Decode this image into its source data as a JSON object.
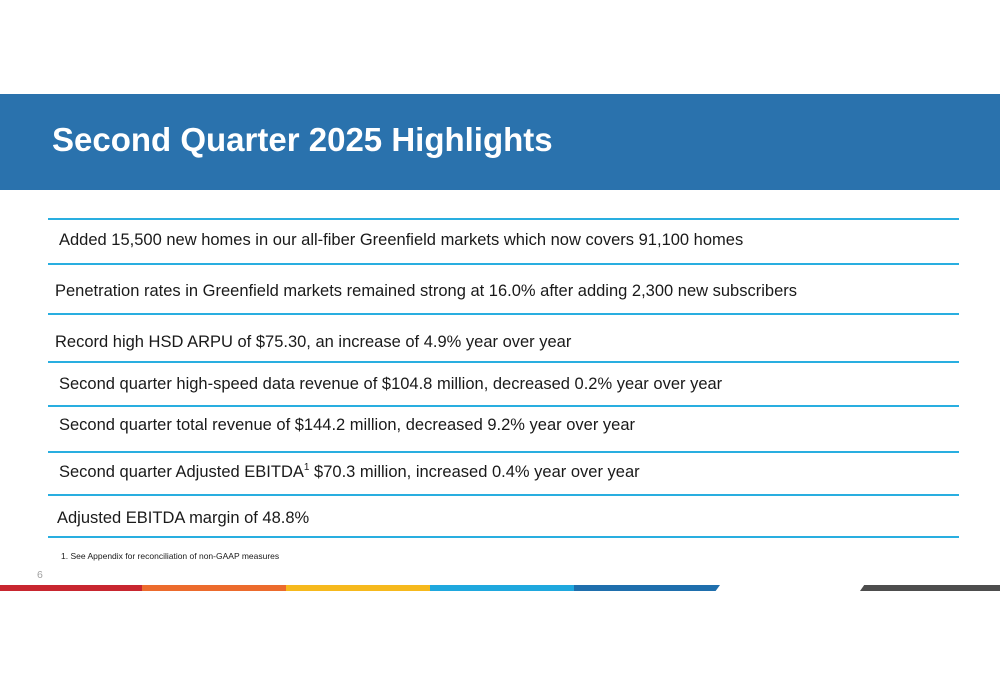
{
  "title": "Second Quarter 2025 Highlights",
  "highlights": [
    {
      "text": "Added 15,500 new homes in our all-fiber Greenfield markets which now covers 91,100 homes"
    },
    {
      "text": "Penetration rates in Greenfield markets remained strong at 16.0% after adding 2,300 new subscribers"
    },
    {
      "text": "Record high HSD ARPU of $75.30, an increase of 4.9% year over year"
    },
    {
      "text": "Second quarter high-speed data revenue of $104.8 million, decreased 0.2% year over year"
    },
    {
      "text": "Second quarter total revenue of $144.2 million, decreased 9.2% year over year"
    },
    {
      "text_before": "Second quarter Adjusted EBITDA",
      "superscript": "1",
      "text_after": " $70.3 million, increased 0.4% year over year"
    },
    {
      "text": "Adjusted EBITDA margin of 48.8%"
    }
  ],
  "footnote": "1. See Appendix for reconciliation of non-GAAP measures",
  "page_number": "6",
  "colors": {
    "title_band": "#2a72ad",
    "rule": "#29aee0",
    "stripe_red": "#c8262f",
    "stripe_orange": "#ec6b2d",
    "stripe_yellow": "#f6b91d",
    "stripe_light_blue": "#1fa8de",
    "stripe_blue": "#1f6fad",
    "stripe_gray": "#4d4d4d"
  }
}
